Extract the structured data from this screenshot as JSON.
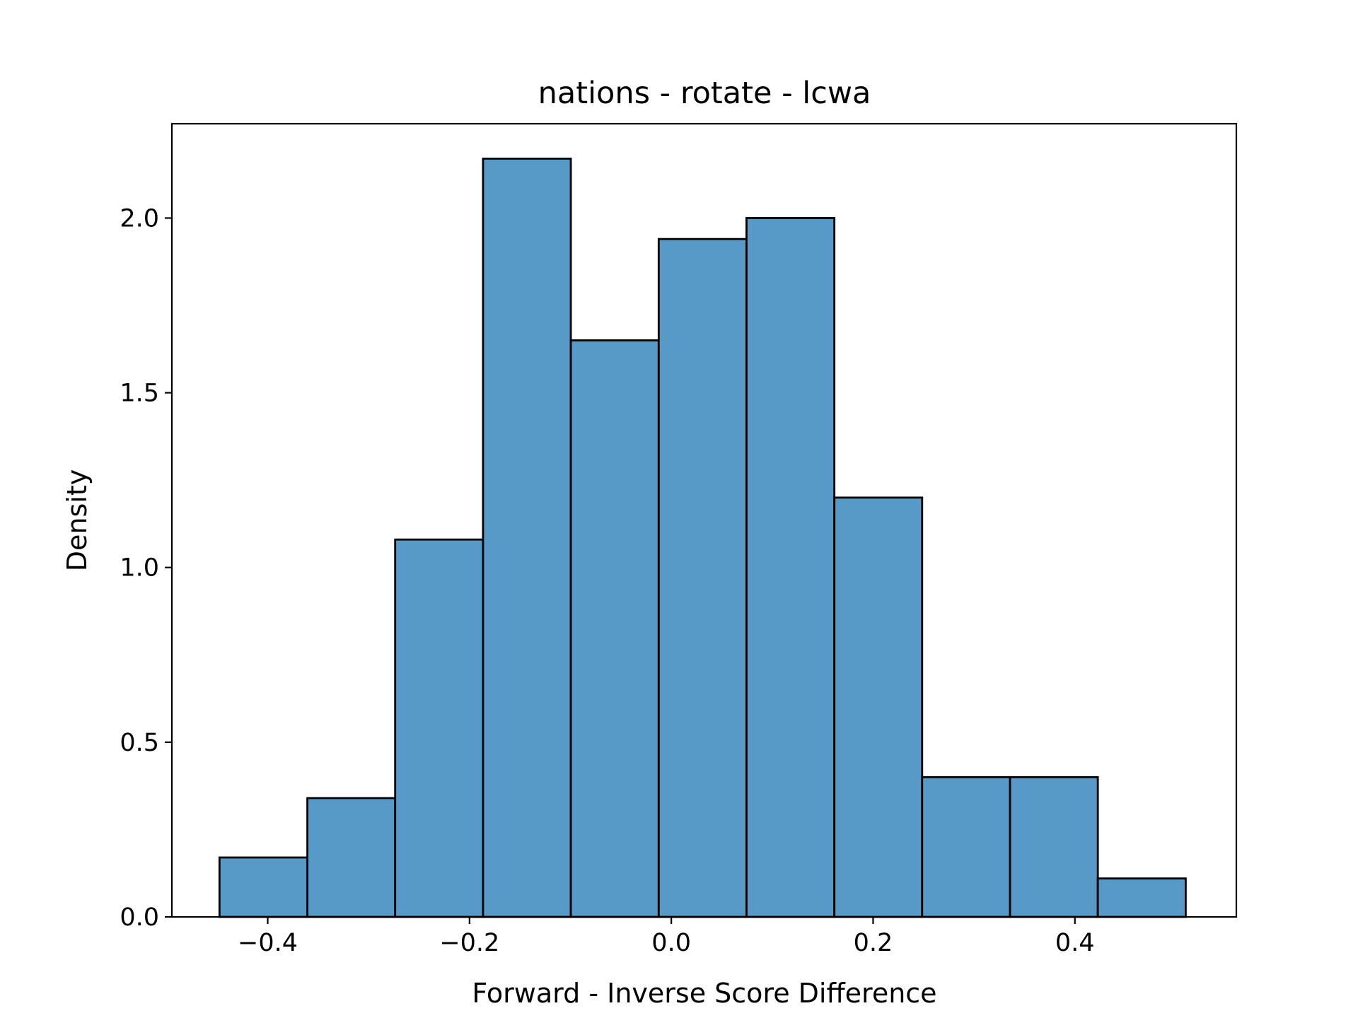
{
  "chart_data": {
    "type": "bar",
    "title": "nations - rotate - lcwa",
    "xlabel": "Forward - Inverse Score Difference",
    "ylabel": "Density",
    "bar_color": "#5799c7",
    "edge_color": "#000000",
    "grid": false,
    "legend": "none",
    "xlim": [
      -0.495,
      0.56
    ],
    "ylim": [
      0,
      2.27
    ],
    "bin_edges": [
      -0.4478,
      -0.3607,
      -0.2737,
      -0.1866,
      -0.0996,
      -0.0125,
      0.0745,
      0.1616,
      0.2486,
      0.3357,
      0.4227,
      0.5098
    ],
    "values": [
      0.17,
      0.34,
      1.08,
      2.17,
      1.65,
      1.94,
      2.0,
      1.2,
      0.4,
      0.4,
      0.11
    ],
    "x_ticks": [
      -0.4,
      -0.2,
      0.0,
      0.2,
      0.4
    ],
    "x_tick_labels": [
      "−0.4",
      "−0.2",
      "0.0",
      "0.2",
      "0.4"
    ],
    "y_ticks": [
      0.0,
      0.5,
      1.0,
      1.5,
      2.0
    ],
    "y_tick_labels": [
      "0.0",
      "0.5",
      "1.0",
      "1.5",
      "2.0"
    ]
  }
}
